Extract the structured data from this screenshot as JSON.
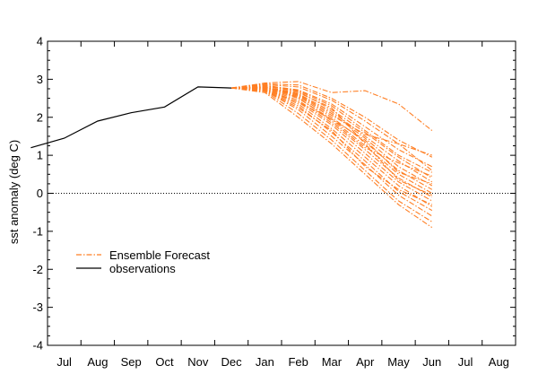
{
  "chart_data": {
    "type": "line",
    "ylabel": "sst anomaly (deg C)",
    "ylim": [
      -4,
      4
    ],
    "yticks": [
      -4,
      -3,
      -2,
      -1,
      0,
      1,
      2,
      3,
      4
    ],
    "xtick_labels": [
      "Jul",
      "Aug",
      "Sep",
      "Oct",
      "Nov",
      "Dec",
      "Jan",
      "Feb",
      "Mar",
      "Apr",
      "May",
      "Jun",
      "Jul",
      "Aug"
    ],
    "xlim": [
      0,
      14
    ],
    "zero_line": true,
    "legend": {
      "position": "bottom-left",
      "items": [
        {
          "label": "Ensemble Forecast",
          "series": "Ensemble Forecast"
        },
        {
          "label": "observations",
          "series": "observations"
        }
      ]
    },
    "series": [
      {
        "name": "observations",
        "color": "#000000",
        "style": "solid",
        "points": [
          [
            -0.5,
            1.2
          ],
          [
            0.5,
            1.45
          ],
          [
            1.5,
            1.9
          ],
          [
            2.5,
            2.12
          ],
          [
            3.5,
            2.27
          ],
          [
            4.5,
            2.8
          ],
          [
            5.5,
            2.77
          ]
        ]
      },
      {
        "name": "Ensemble Forecast",
        "color": "#ff7f24",
        "style": "dashdot",
        "members": [
          {
            "x": [
              5.5,
              6.5,
              7.5,
              8.5,
              9.5,
              10.5,
              11.5
            ],
            "y": [
              2.77,
              2.9,
              2.94,
              2.65,
              2.7,
              2.35,
              1.65
            ]
          },
          {
            "x": [
              5.5,
              6.5,
              7.5,
              8.5,
              9.5,
              10.5,
              11.5
            ],
            "y": [
              2.77,
              2.88,
              2.85,
              2.5,
              2.0,
              1.4,
              0.95
            ]
          },
          {
            "x": [
              5.5,
              6.5,
              7.5,
              8.5,
              9.5,
              10.5,
              11.5
            ],
            "y": [
              2.77,
              2.86,
              2.8,
              2.45,
              1.9,
              1.3,
              1.0
            ]
          },
          {
            "x": [
              5.5,
              6.5,
              7.5,
              8.5,
              9.5,
              10.5,
              11.5
            ],
            "y": [
              2.77,
              2.84,
              2.72,
              2.35,
              1.75,
              1.15,
              0.7
            ]
          },
          {
            "x": [
              5.5,
              6.5,
              7.5,
              8.5,
              9.5,
              10.5,
              11.5
            ],
            "y": [
              2.77,
              2.83,
              2.7,
              2.3,
              1.65,
              1.0,
              0.55
            ]
          },
          {
            "x": [
              5.5,
              6.5,
              7.5,
              8.5,
              9.5,
              10.5,
              11.5
            ],
            "y": [
              2.77,
              2.82,
              2.68,
              2.2,
              1.6,
              0.95,
              0.4
            ]
          },
          {
            "x": [
              5.5,
              6.5,
              7.5,
              8.5,
              9.5,
              10.5,
              11.5
            ],
            "y": [
              2.77,
              2.8,
              2.62,
              2.15,
              1.5,
              0.85,
              0.3
            ]
          },
          {
            "x": [
              5.5,
              6.5,
              7.5,
              8.5,
              9.5,
              10.5,
              11.5
            ],
            "y": [
              2.77,
              2.79,
              2.6,
              2.1,
              1.45,
              0.7,
              0.2
            ]
          },
          {
            "x": [
              5.5,
              6.5,
              7.5,
              8.5,
              9.5,
              10.5,
              11.5
            ],
            "y": [
              2.77,
              2.78,
              2.55,
              2.0,
              1.35,
              0.6,
              0.1
            ]
          },
          {
            "x": [
              5.5,
              6.5,
              7.5,
              8.5,
              9.5,
              10.5,
              11.5
            ],
            "y": [
              2.77,
              2.77,
              2.5,
              1.95,
              1.25,
              0.5,
              0.0
            ]
          },
          {
            "x": [
              5.5,
              6.5,
              7.5,
              8.5,
              9.5,
              10.5,
              11.5
            ],
            "y": [
              2.77,
              2.76,
              2.45,
              1.85,
              1.15,
              0.4,
              -0.1
            ]
          },
          {
            "x": [
              5.5,
              6.5,
              7.5,
              8.5,
              9.5,
              10.5,
              11.5
            ],
            "y": [
              2.77,
              2.75,
              2.4,
              1.8,
              1.05,
              0.3,
              -0.2
            ]
          },
          {
            "x": [
              5.5,
              6.5,
              7.5,
              8.5,
              9.5,
              10.5,
              11.5
            ],
            "y": [
              2.77,
              2.74,
              2.35,
              1.7,
              0.95,
              0.2,
              -0.35
            ]
          },
          {
            "x": [
              5.5,
              6.5,
              7.5,
              8.5,
              9.5,
              10.5,
              11.5
            ],
            "y": [
              2.77,
              2.72,
              2.3,
              1.6,
              0.85,
              0.05,
              -0.45
            ]
          },
          {
            "x": [
              5.5,
              6.5,
              7.5,
              8.5,
              9.5,
              10.5,
              11.5
            ],
            "y": [
              2.77,
              2.7,
              2.2,
              1.5,
              0.75,
              -0.05,
              -0.6
            ]
          },
          {
            "x": [
              5.5,
              6.5,
              7.5,
              8.5,
              9.5,
              10.5,
              11.5
            ],
            "y": [
              2.77,
              2.68,
              2.1,
              1.4,
              0.6,
              -0.2,
              -0.75
            ]
          },
          {
            "x": [
              5.5,
              6.5,
              7.5,
              8.5,
              9.5,
              10.5,
              11.5
            ],
            "y": [
              2.77,
              2.65,
              2.0,
              1.3,
              0.5,
              -0.3,
              -0.9
            ]
          },
          {
            "x": [
              5.5,
              6.5,
              7.5,
              8.5,
              9.5,
              10.5,
              11.5
            ],
            "y": [
              2.77,
              2.78,
              2.58,
              2.05,
              1.55,
              1.3,
              0.6
            ]
          },
          {
            "x": [
              5.5,
              6.5,
              7.5,
              8.5,
              9.5,
              10.5,
              11.5
            ],
            "y": [
              2.77,
              2.81,
              2.52,
              1.9,
              1.2,
              0.8,
              0.45
            ]
          },
          {
            "x": [
              5.5,
              6.5,
              7.5,
              8.5,
              9.5,
              10.5,
              11.5
            ],
            "y": [
              2.77,
              2.73,
              2.4,
              1.95,
              1.4,
              0.55,
              0.25
            ]
          },
          {
            "x": [
              5.5,
              6.5,
              7.5,
              8.5,
              9.5,
              10.5,
              11.5
            ],
            "y": [
              2.77,
              2.79,
              2.65,
              2.25,
              1.3,
              0.35,
              -0.05
            ]
          },
          {
            "x": [
              5.5,
              6.5,
              7.5,
              8.5,
              9.5,
              10.5,
              11.5
            ],
            "y": [
              2.77,
              2.71,
              2.25,
              1.65,
              0.7,
              0.1,
              -0.3
            ]
          }
        ]
      }
    ]
  }
}
